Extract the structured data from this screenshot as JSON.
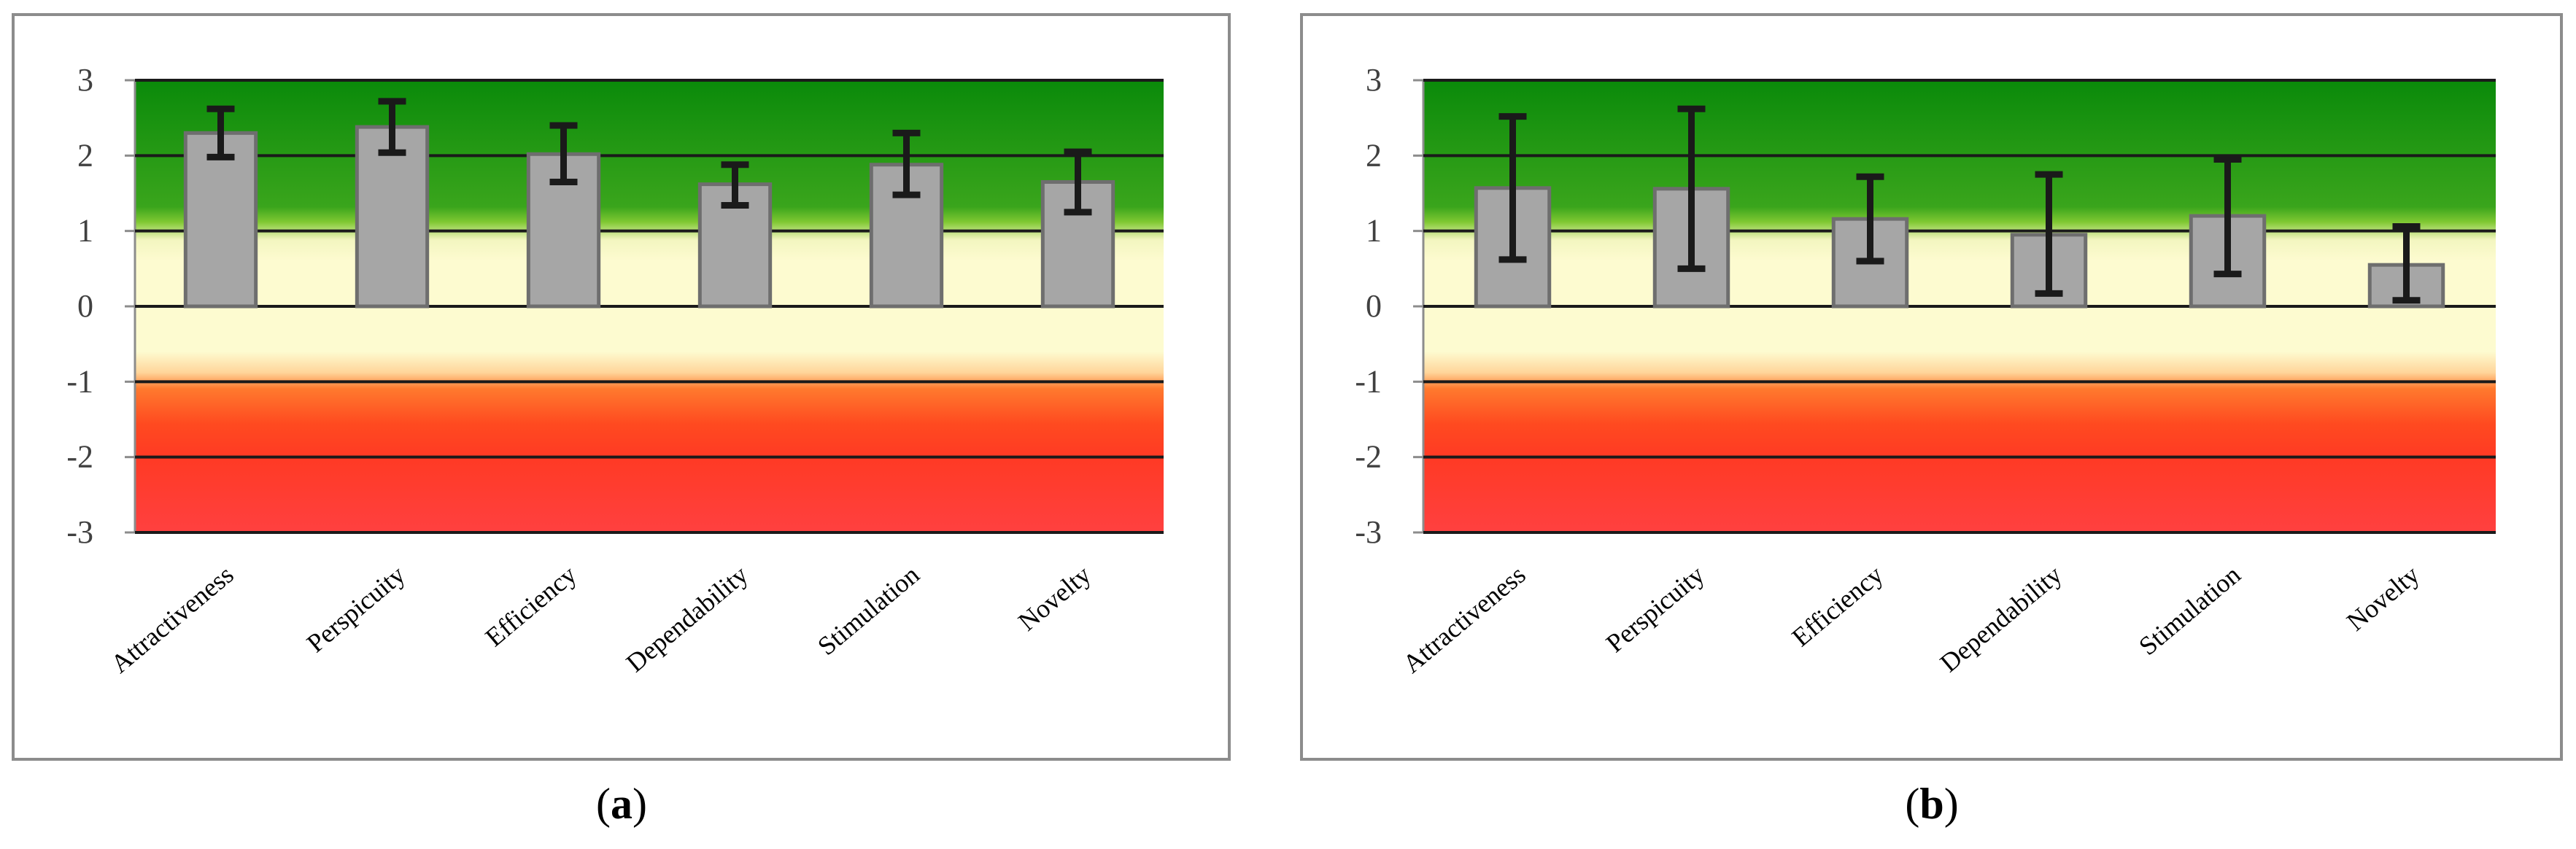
{
  "colors": {
    "bar_fill": "#a6a6a6",
    "bar_stroke": "#6e6e6e",
    "gridline": "#1a1a1a",
    "error_bar": "#1a1a1a",
    "axis_text": "#404040",
    "panel_border": "#8c8c8c",
    "band_excellent": "#0a8a0a",
    "band_good": "#7fc832",
    "band_neutral": "#fdfbd0",
    "band_below": "#ff7a2e",
    "band_bad": "#ff4040"
  },
  "chart_data": [
    {
      "type": "bar",
      "panel": "a",
      "caption": {
        "open": "(",
        "letter": "a",
        "close": ")"
      },
      "categories": [
        "Attractiveness",
        "Perspicuity",
        "Efficiency",
        "Dependability",
        "Stimulation",
        "Novelty"
      ],
      "values": [
        2.3,
        2.38,
        2.02,
        1.62,
        1.88,
        1.65
      ],
      "error_low": [
        1.98,
        2.04,
        1.65,
        1.34,
        1.48,
        1.25
      ],
      "error_high": [
        2.62,
        2.72,
        2.4,
        1.88,
        2.3,
        2.05
      ],
      "ylim": [
        -3,
        3
      ],
      "yticks": [
        "3",
        "2",
        "1",
        "0",
        "-1",
        "-2",
        "-3"
      ],
      "grid": true,
      "xlabel": "",
      "ylabel": ""
    },
    {
      "type": "bar",
      "panel": "b",
      "caption": {
        "open": "(",
        "letter": "b",
        "close": ")"
      },
      "categories": [
        "Attractiveness",
        "Perspicuity",
        "Efficiency",
        "Dependability",
        "Stimulation",
        "Novelty"
      ],
      "values": [
        1.57,
        1.56,
        1.16,
        0.95,
        1.2,
        0.55
      ],
      "error_low": [
        0.62,
        0.5,
        0.6,
        0.17,
        0.43,
        0.08
      ],
      "error_high": [
        2.52,
        2.62,
        1.72,
        1.75,
        1.95,
        1.06
      ],
      "ylim": [
        -3,
        3
      ],
      "yticks": [
        "3",
        "2",
        "1",
        "0",
        "-1",
        "-2",
        "-3"
      ],
      "grid": true,
      "xlabel": "",
      "ylabel": ""
    }
  ]
}
